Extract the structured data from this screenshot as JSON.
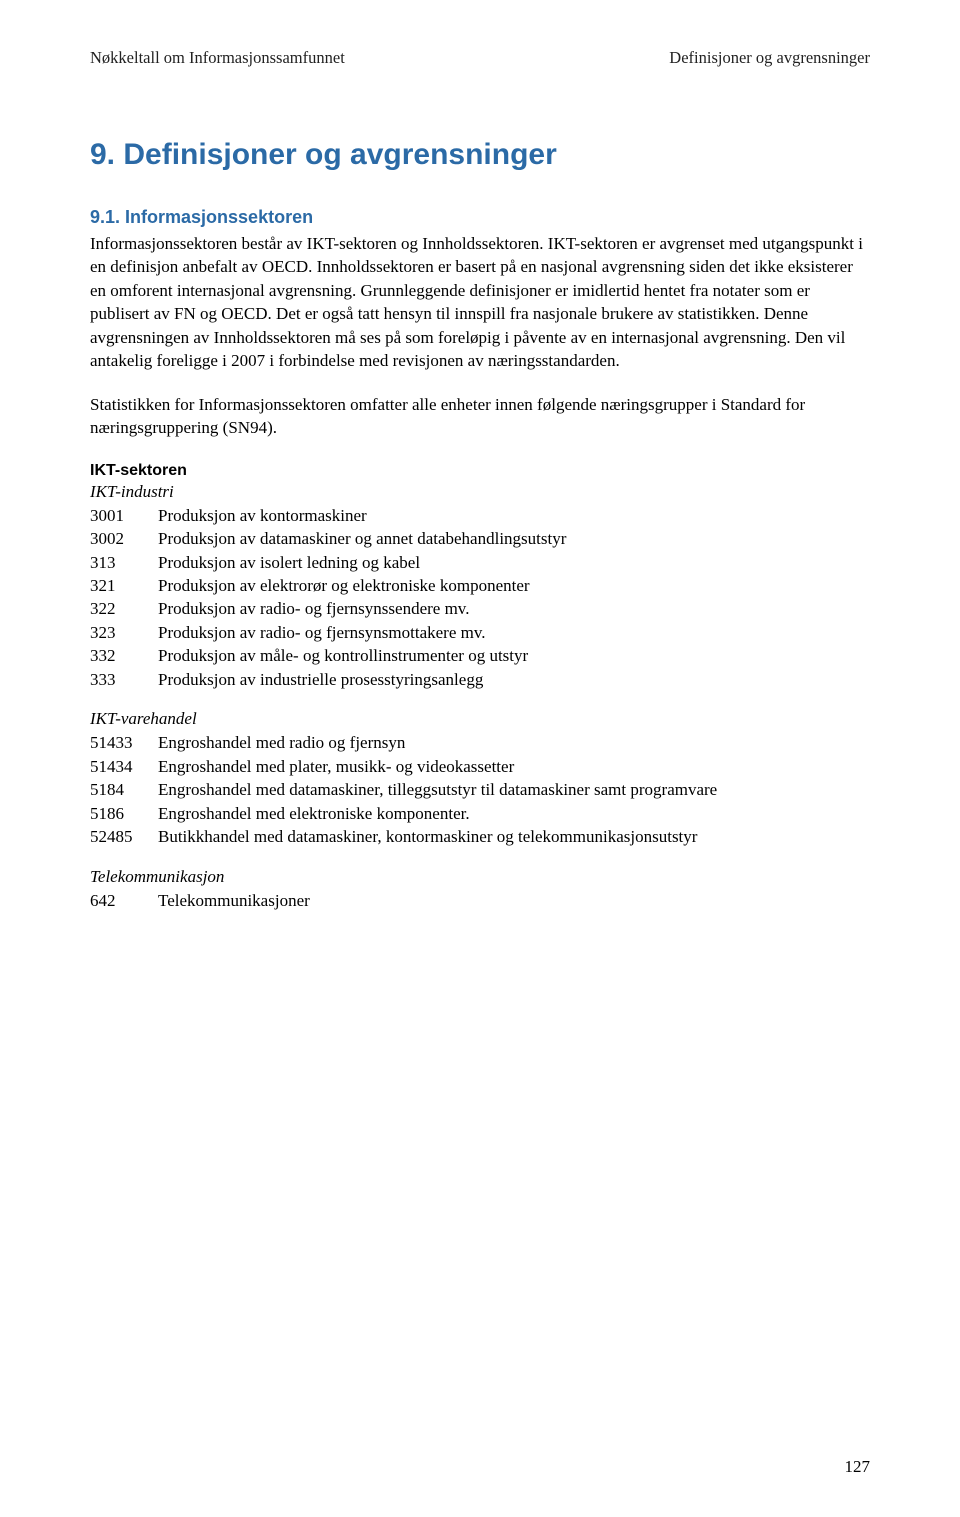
{
  "header": {
    "left": "Nøkkeltall om Informasjonssamfunnet",
    "right": "Definisjoner og avgrensninger"
  },
  "chapter_title": "9.   Definisjoner og avgrensninger",
  "section_title": "9.1.  Informasjonssektoren",
  "para1": "Informasjonssektoren består av IKT-sektoren og Innholdssektoren. IKT-sektoren er avgrenset med utgangspunkt i en definisjon anbefalt av OECD. Innholdssektoren er basert på en nasjonal avgrensning siden det ikke eksisterer en omforent internasjonal avgrensning. Grunnleggende definisjoner er imidlertid hentet fra notater som er publisert av FN og OECD. Det er også tatt hensyn til innspill fra nasjonale brukere av statistikken. Denne avgrensningen av Innholdssektoren må ses på som foreløpig i påvente av en internasjonal avgrensning. Den vil antakelig foreligge i 2007 i forbindelse med revisjonen av næringsstandarden.",
  "para2": "Statistikken for Informasjonssektoren omfatter alle enheter innen følgende næringsgrupper i Standard for næringsgruppering (SN94).",
  "ikt_sektoren_label": "IKT-sektoren",
  "ikt_industri_label": "IKT-industri",
  "ikt_industri": [
    {
      "code": "3001",
      "desc": "Produksjon av kontormaskiner"
    },
    {
      "code": "3002",
      "desc": "Produksjon av datamaskiner og annet databehandlingsutstyr"
    },
    {
      "code": "313",
      "desc": "Produksjon av isolert ledning og kabel"
    },
    {
      "code": "321",
      "desc": "Produksjon av elektrorør og elektroniske komponenter"
    },
    {
      "code": "322",
      "desc": "Produksjon av radio- og fjernsynssendere mv."
    },
    {
      "code": "323",
      "desc": "Produksjon av radio- og fjernsynsmottakere mv."
    },
    {
      "code": "332",
      "desc": "Produksjon av måle- og kontrollinstrumenter og utstyr"
    },
    {
      "code": "333",
      "desc": "Produksjon av industrielle prosesstyringsanlegg"
    }
  ],
  "ikt_varehandel_label": "IKT-varehandel",
  "ikt_varehandel": [
    {
      "code": "51433",
      "desc": "Engroshandel med radio og fjernsyn"
    },
    {
      "code": "51434",
      "desc": "Engroshandel med plater, musikk- og videokassetter"
    },
    {
      "code": "5184",
      "desc": "Engroshandel med datamaskiner, tilleggsutstyr til datamaskiner samt programvare"
    },
    {
      "code": "5186",
      "desc": "Engroshandel med elektroniske komponenter."
    },
    {
      "code": "52485",
      "desc": "Butikkhandel med datamaskiner, kontormaskiner og telekommunikasjonsutstyr"
    }
  ],
  "telekom_label": "Telekommunikasjon",
  "telekom": [
    {
      "code": "642",
      "desc": "Telekommunikasjoner"
    }
  ],
  "page_number": "127"
}
